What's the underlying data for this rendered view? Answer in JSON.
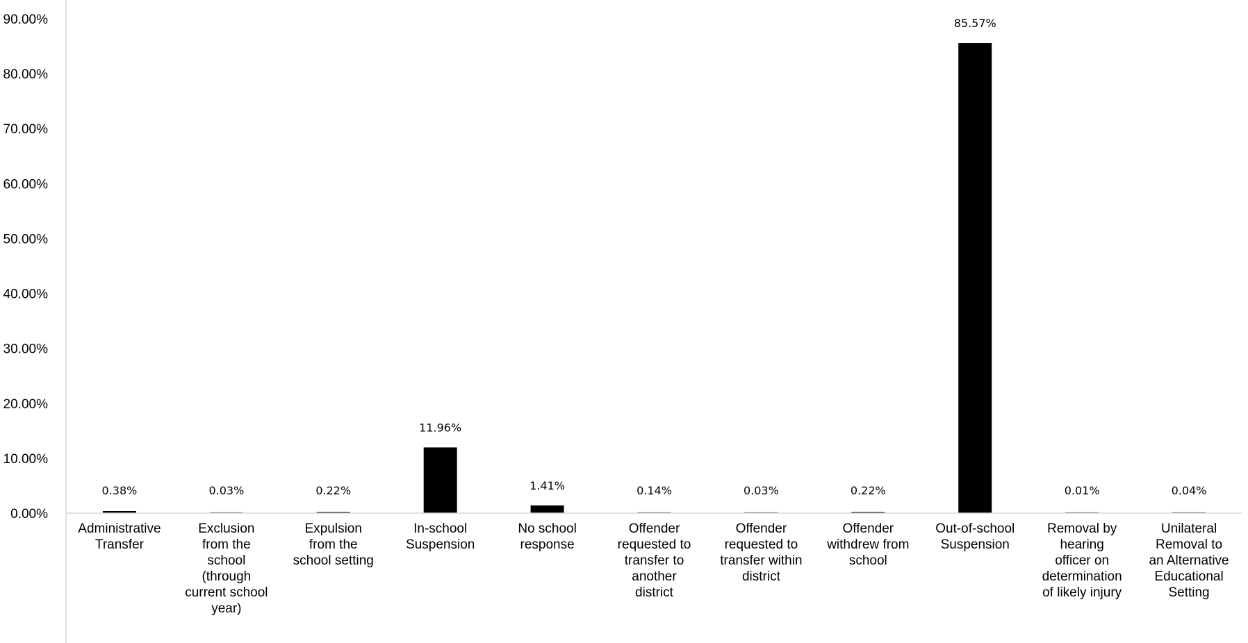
{
  "chart_data": {
    "type": "bar",
    "categories": [
      [
        "Administrative",
        "Transfer"
      ],
      [
        "Exclusion",
        "from the",
        "school",
        "(through",
        "current school",
        "year)"
      ],
      [
        "Expulsion",
        "from the",
        "school setting"
      ],
      [
        "In-school",
        "Suspension"
      ],
      [
        "No school",
        "response"
      ],
      [
        "Offender",
        "requested to",
        "transfer to",
        "another",
        "district"
      ],
      [
        "Offender",
        "requested to",
        "transfer within",
        "district"
      ],
      [
        "Offender",
        "withdrew from",
        "school"
      ],
      [
        "Out-of-school",
        "Suspension"
      ],
      [
        "Removal by",
        "hearing",
        "officer on",
        "determination",
        "of likely injury"
      ],
      [
        "Unilateral",
        "Removal to",
        "an Alternative",
        "Educational",
        "Setting"
      ]
    ],
    "values": [
      0.38,
      0.03,
      0.22,
      11.96,
      1.41,
      0.14,
      0.03,
      0.22,
      85.57,
      0.01,
      0.04
    ],
    "data_labels": [
      "0.38%",
      "0.03%",
      "0.22%",
      "11.96%",
      "1.41%",
      "0.14%",
      "0.03%",
      "0.22%",
      "85.57%",
      "0.01%",
      "0.04%"
    ],
    "y_ticks": [
      0,
      10,
      20,
      30,
      40,
      50,
      60,
      70,
      80,
      90
    ],
    "y_tick_labels": [
      "0.00%",
      "10.00%",
      "20.00%",
      "30.00%",
      "40.00%",
      "50.00%",
      "60.00%",
      "70.00%",
      "80.00%",
      "90.00%"
    ],
    "ylim": [
      0,
      90
    ],
    "title": "",
    "xlabel": "",
    "ylabel": "",
    "grid": false,
    "legend": "none",
    "bar_color": "#000000"
  }
}
